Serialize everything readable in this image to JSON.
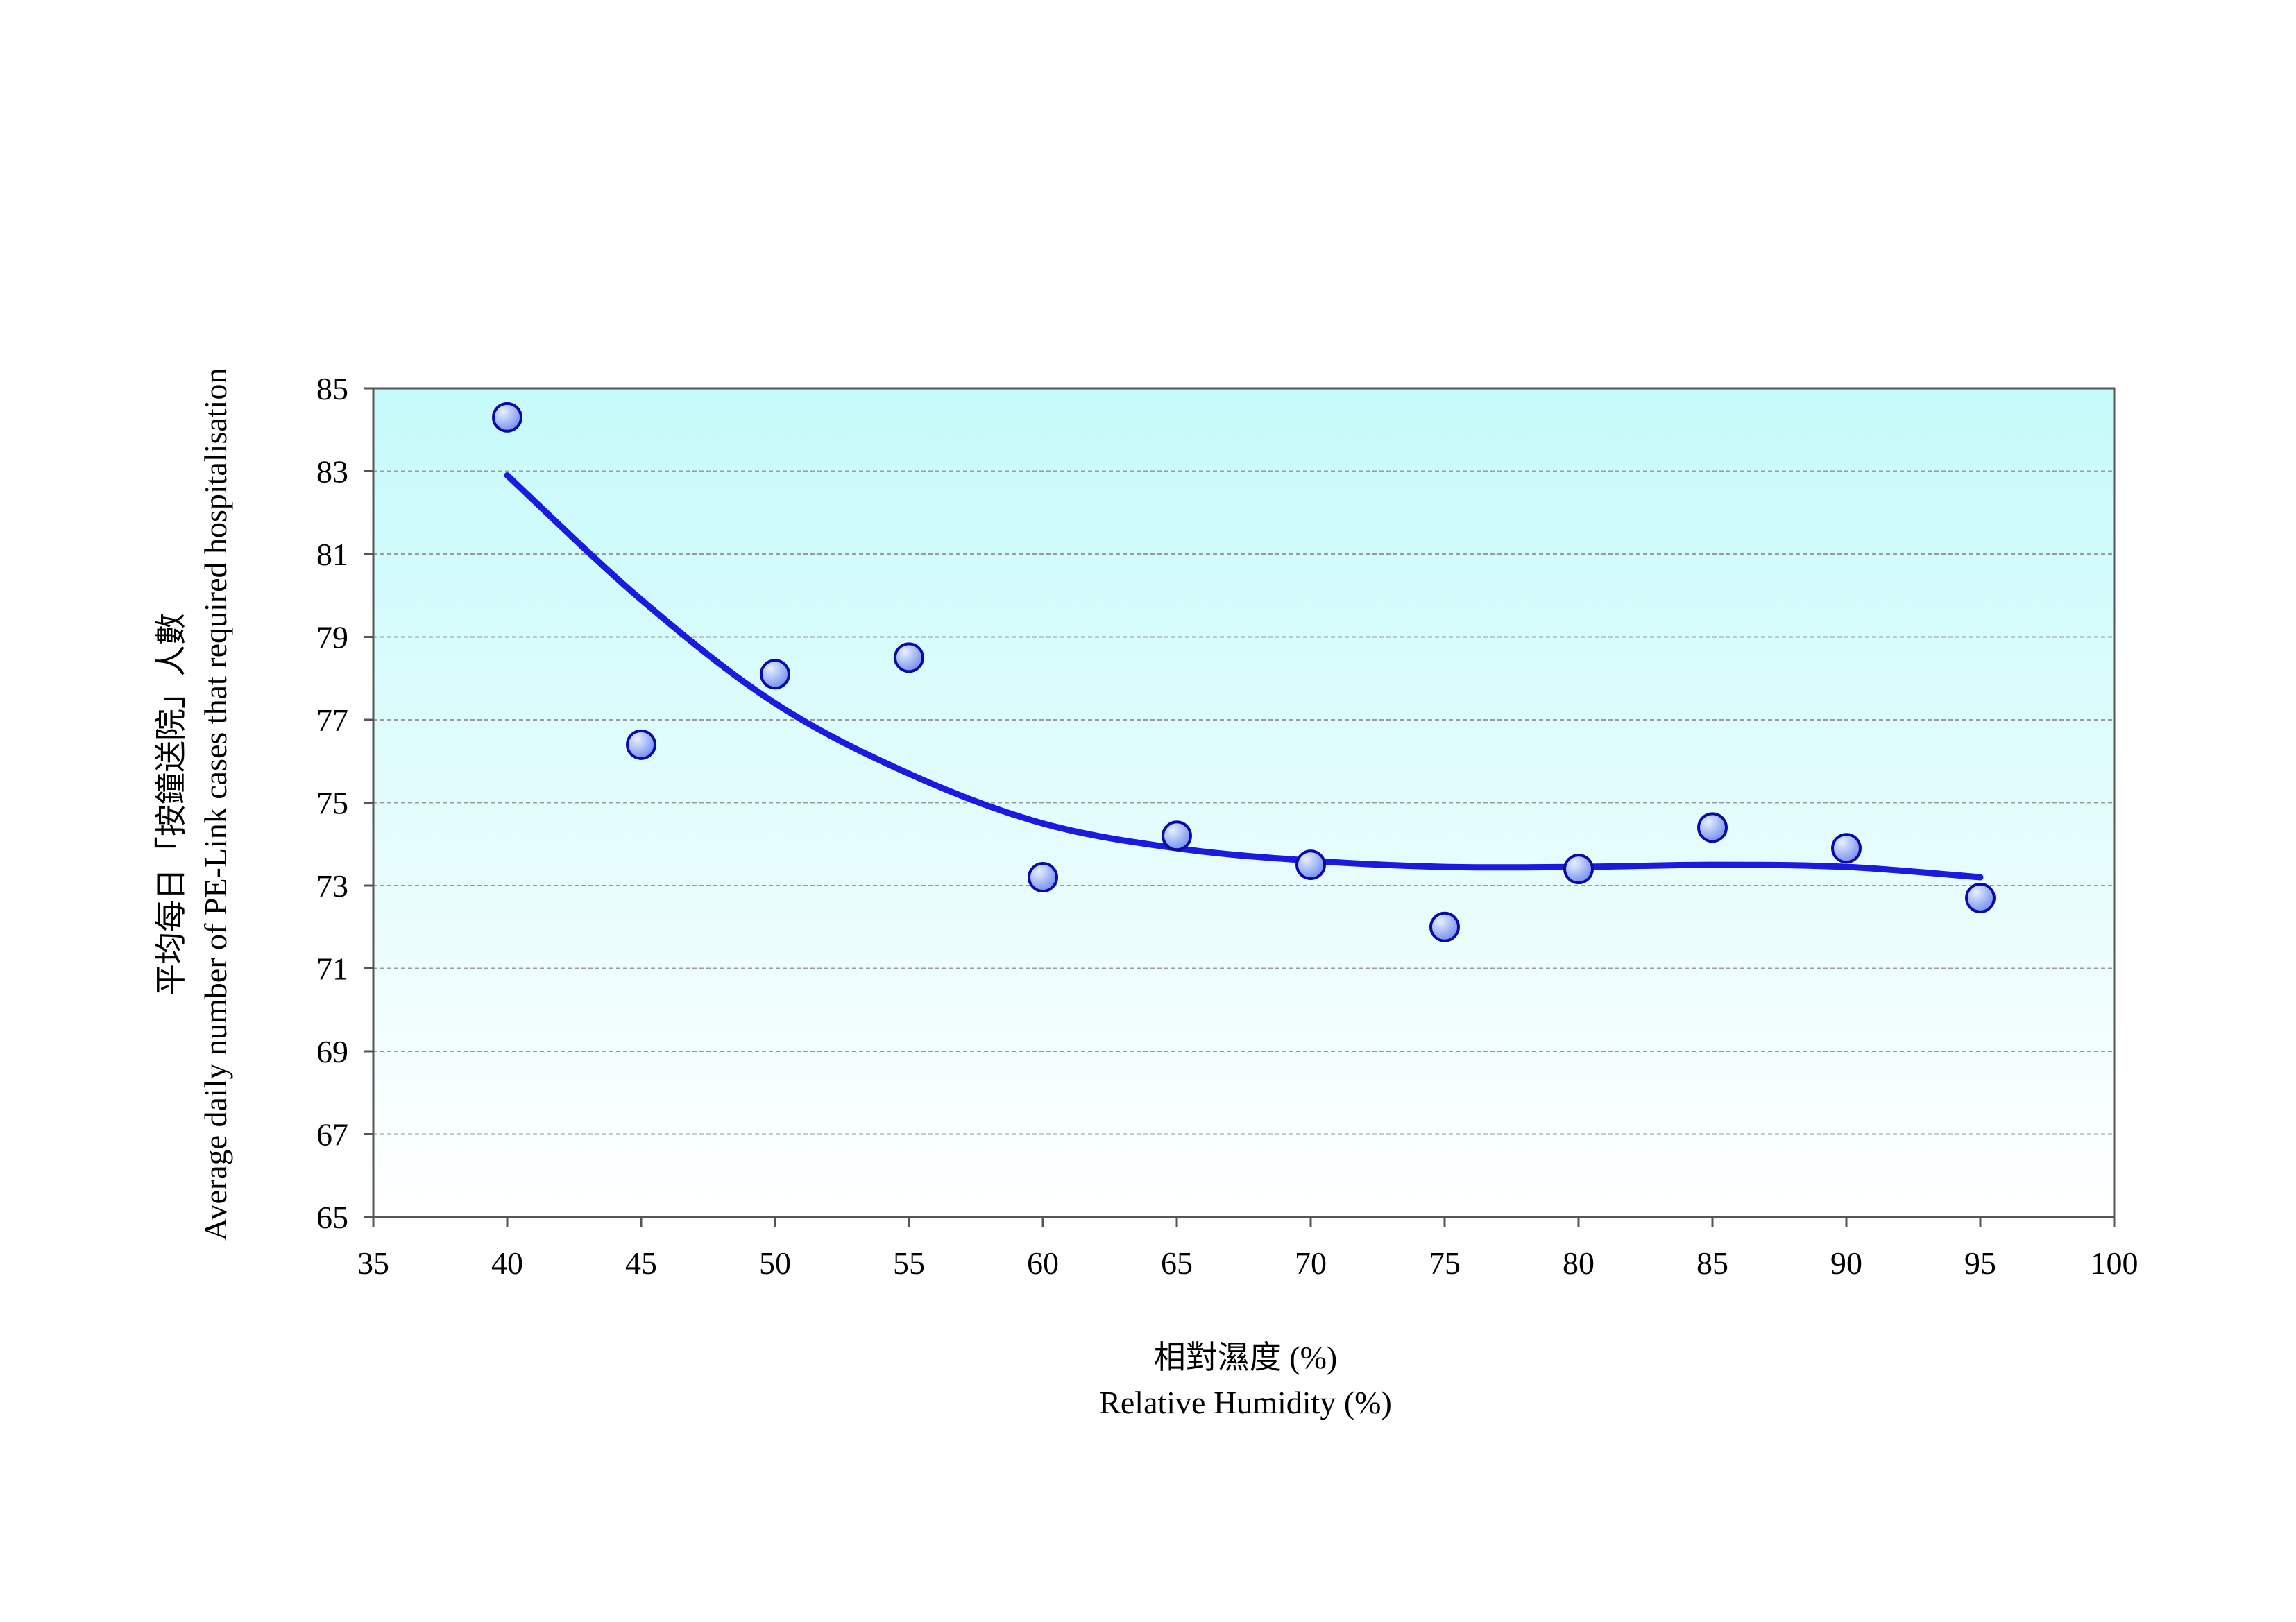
{
  "chart_data": {
    "type": "scatter",
    "xlabel_line1": "相對濕度 (%)",
    "xlabel_line2": "Relative Humidity (%)",
    "ylabel_line1": "平均每日「按鐘送院」人數",
    "ylabel_line2": "Average daily number of PE-Link cases that required hospitalisation",
    "xlim": [
      35,
      100
    ],
    "ylim": [
      65,
      85
    ],
    "xticks": [
      35,
      40,
      45,
      50,
      55,
      60,
      65,
      70,
      75,
      80,
      85,
      90,
      95,
      100
    ],
    "yticks": [
      65,
      67,
      69,
      71,
      73,
      75,
      77,
      79,
      81,
      83,
      85
    ],
    "grid": "horizontal dashed",
    "points": [
      {
        "x": 40,
        "y": 84.3
      },
      {
        "x": 45,
        "y": 76.4
      },
      {
        "x": 50,
        "y": 78.1
      },
      {
        "x": 55,
        "y": 78.5
      },
      {
        "x": 60,
        "y": 73.2
      },
      {
        "x": 65,
        "y": 74.2
      },
      {
        "x": 70,
        "y": 73.5
      },
      {
        "x": 75,
        "y": 72.0
      },
      {
        "x": 80,
        "y": 73.4
      },
      {
        "x": 85,
        "y": 74.4
      },
      {
        "x": 90,
        "y": 73.9
      },
      {
        "x": 95,
        "y": 72.7
      }
    ],
    "trendline": [
      {
        "x": 40,
        "y": 82.9
      },
      {
        "x": 45,
        "y": 79.9
      },
      {
        "x": 50,
        "y": 77.4
      },
      {
        "x": 55,
        "y": 75.7
      },
      {
        "x": 60,
        "y": 74.5
      },
      {
        "x": 65,
        "y": 73.9
      },
      {
        "x": 70,
        "y": 73.6
      },
      {
        "x": 75,
        "y": 73.45
      },
      {
        "x": 80,
        "y": 73.45
      },
      {
        "x": 85,
        "y": 73.5
      },
      {
        "x": 90,
        "y": 73.45
      },
      {
        "x": 95,
        "y": 73.2
      }
    ],
    "colors": {
      "plot_bg_top": "#c6fafa",
      "plot_bg_bottom": "#ffffff",
      "trendline": "#1a1ae0",
      "marker_fill_light": "#e8f0ff",
      "marker_fill_dark": "#6f8df0",
      "marker_stroke": "#0a0aa8",
      "gridline": "#9a9a9a",
      "axis": "#555555"
    }
  }
}
